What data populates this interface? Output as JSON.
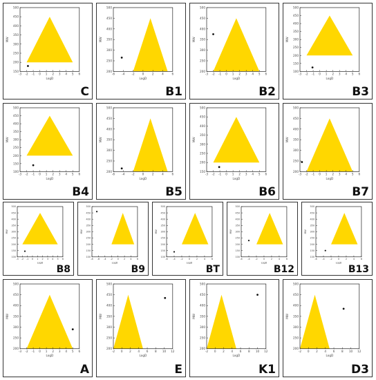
{
  "colors": {
    "triangle": "#FFD700",
    "point": "#111111",
    "axis": "#222222",
    "tick_text": "#444444"
  },
  "common_axis_labels": {
    "xlabel": "LogD",
    "ylabel": "MW"
  },
  "chart_data": [
    {
      "id": "C",
      "type": "scatter",
      "xlim": [
        -3,
        6
      ],
      "xticks": [
        -3,
        -2,
        -1,
        0,
        1,
        2,
        3,
        4,
        5,
        6
      ],
      "ylim": [
        150,
        500
      ],
      "yticks": [
        150,
        200,
        250,
        300,
        350,
        400,
        450,
        500
      ],
      "triangle": [
        [
          -2,
          200
        ],
        [
          1.5,
          450
        ],
        [
          5,
          200
        ]
      ],
      "points": [
        [
          -1.8,
          180
        ]
      ]
    },
    {
      "id": "B1",
      "type": "scatter",
      "xlim": [
        -6,
        6
      ],
      "xticks": [
        -6,
        -4,
        -2,
        0,
        2,
        4,
        6
      ],
      "ylim": [
        200,
        500
      ],
      "yticks": [
        200,
        250,
        300,
        350,
        400,
        450,
        500
      ],
      "triangle": [
        [
          -2,
          200
        ],
        [
          1.5,
          450
        ],
        [
          5,
          200
        ]
      ],
      "points": [
        [
          -4.3,
          265
        ]
      ]
    },
    {
      "id": "B2",
      "type": "scatter",
      "xlim": [
        -3,
        6
      ],
      "xticks": [
        -3,
        -2,
        -1,
        0,
        1,
        2,
        3,
        4,
        5,
        6
      ],
      "ylim": [
        200,
        500
      ],
      "yticks": [
        200,
        250,
        300,
        350,
        400,
        450,
        500
      ],
      "triangle": [
        [
          -2,
          200
        ],
        [
          1.5,
          450
        ],
        [
          5,
          200
        ]
      ],
      "points": [
        [
          -2.0,
          375
        ]
      ]
    },
    {
      "id": "B3",
      "type": "scatter",
      "xlim": [
        -3,
        6
      ],
      "xticks": [
        -3,
        -2,
        -1,
        0,
        1,
        2,
        3,
        4,
        5,
        6
      ],
      "ylim": [
        100,
        500
      ],
      "yticks": [
        100,
        150,
        200,
        250,
        300,
        350,
        400,
        450,
        500
      ],
      "triangle": [
        [
          -2,
          200
        ],
        [
          1.5,
          450
        ],
        [
          5,
          200
        ]
      ],
      "points": [
        [
          -1.1,
          125
        ]
      ]
    },
    {
      "id": "B4",
      "type": "scatter",
      "xlim": [
        -3,
        6
      ],
      "xticks": [
        -3,
        -2,
        -1,
        0,
        1,
        2,
        3,
        4,
        5,
        6
      ],
      "ylim": [
        100,
        500
      ],
      "yticks": [
        100,
        150,
        200,
        250,
        300,
        350,
        400,
        450,
        500
      ],
      "triangle": [
        [
          -2,
          200
        ],
        [
          1.5,
          450
        ],
        [
          5,
          200
        ]
      ],
      "points": [
        [
          -1.0,
          140
        ]
      ]
    },
    {
      "id": "B5",
      "type": "scatter",
      "xlim": [
        -6,
        6
      ],
      "xticks": [
        -6,
        -4,
        -2,
        0,
        2,
        4,
        6
      ],
      "ylim": [
        200,
        500
      ],
      "yticks": [
        200,
        250,
        300,
        350,
        400,
        450,
        500
      ],
      "triangle": [
        [
          -2,
          200
        ],
        [
          1.5,
          450
        ],
        [
          5,
          200
        ]
      ],
      "points": [
        [
          -4.3,
          215
        ]
      ]
    },
    {
      "id": "B6",
      "type": "scatter",
      "xlim": [
        -3,
        6
      ],
      "xticks": [
        -3,
        -2,
        -1,
        0,
        1,
        2,
        3,
        4,
        5,
        6
      ],
      "ylim": [
        150,
        500
      ],
      "yticks": [
        150,
        200,
        250,
        300,
        350,
        400,
        450,
        500
      ],
      "triangle": [
        [
          -2,
          200
        ],
        [
          1.5,
          450
        ],
        [
          5,
          200
        ]
      ],
      "points": [
        [
          -1.1,
          175
        ]
      ]
    },
    {
      "id": "B7",
      "type": "scatter",
      "xlim": [
        -3,
        6
      ],
      "xticks": [
        -3,
        -2,
        -1,
        0,
        1,
        2,
        3,
        4,
        5,
        6
      ],
      "ylim": [
        200,
        500
      ],
      "yticks": [
        200,
        250,
        300,
        350,
        400,
        450,
        500
      ],
      "triangle": [
        [
          -2,
          200
        ],
        [
          1.5,
          450
        ],
        [
          5,
          200
        ]
      ],
      "points": [
        [
          -2.7,
          245
        ]
      ]
    },
    {
      "id": "B8",
      "type": "scatter",
      "xlim": [
        -3,
        6
      ],
      "xticks": [
        -3,
        -2,
        -1,
        0,
        1,
        2,
        3,
        4,
        5,
        6
      ],
      "ylim": [
        100,
        500
      ],
      "yticks": [
        100,
        150,
        200,
        250,
        300,
        350,
        400,
        450,
        500
      ],
      "triangle": [
        [
          -2,
          200
        ],
        [
          1.5,
          450
        ],
        [
          5,
          200
        ]
      ],
      "points": [
        [
          -1.5,
          145
        ]
      ]
    },
    {
      "id": "B9",
      "type": "scatter",
      "xlim": [
        -8,
        6
      ],
      "xticks": [
        -8,
        -6,
        -4,
        -2,
        0,
        2,
        4,
        6
      ],
      "ylim": [
        100,
        500
      ],
      "yticks": [
        100,
        150,
        200,
        250,
        300,
        350,
        400,
        450,
        500
      ],
      "triangle": [
        [
          -2,
          200
        ],
        [
          1.5,
          450
        ],
        [
          5,
          200
        ]
      ],
      "points": [
        [
          -6.5,
          460
        ]
      ]
    },
    {
      "id": "BT",
      "type": "scatter",
      "xlim": [
        -6,
        6
      ],
      "xticks": [
        -6,
        -4,
        -2,
        0,
        2,
        4,
        6
      ],
      "ylim": [
        100,
        500
      ],
      "yticks": [
        100,
        150,
        200,
        250,
        300,
        350,
        400,
        450,
        500
      ],
      "triangle": [
        [
          -2,
          200
        ],
        [
          1.5,
          450
        ],
        [
          5,
          200
        ]
      ],
      "points": [
        [
          -4.0,
          140
        ]
      ]
    },
    {
      "id": "B12",
      "type": "scatter",
      "xlim": [
        -6,
        6
      ],
      "xticks": [
        -6,
        -4,
        -2,
        0,
        2,
        4,
        6
      ],
      "ylim": [
        100,
        500
      ],
      "yticks": [
        100,
        150,
        200,
        250,
        300,
        350,
        400,
        450,
        500
      ],
      "triangle": [
        [
          -2,
          200
        ],
        [
          1.5,
          450
        ],
        [
          5,
          200
        ]
      ],
      "points": [
        [
          -4.0,
          230
        ]
      ]
    },
    {
      "id": "B13",
      "type": "scatter",
      "xlim": [
        -6,
        6
      ],
      "xticks": [
        -6,
        -4,
        -2,
        0,
        2,
        4,
        6
      ],
      "ylim": [
        100,
        500
      ],
      "yticks": [
        100,
        150,
        200,
        250,
        300,
        350,
        400,
        450,
        500
      ],
      "triangle": [
        [
          -2,
          200
        ],
        [
          1.5,
          450
        ],
        [
          5,
          200
        ]
      ],
      "points": [
        [
          -3.5,
          150
        ]
      ]
    },
    {
      "id": "A",
      "type": "scatter",
      "xlim": [
        -3,
        6
      ],
      "xticks": [
        -3,
        -2,
        -1,
        0,
        1,
        2,
        3,
        4,
        5,
        6
      ],
      "ylim": [
        200,
        500
      ],
      "yticks": [
        200,
        250,
        300,
        350,
        400,
        450,
        500
      ],
      "triangle": [
        [
          -2,
          200
        ],
        [
          1.5,
          450
        ],
        [
          5,
          200
        ]
      ],
      "points": [
        [
          5.0,
          290
        ]
      ]
    },
    {
      "id": "E",
      "type": "scatter",
      "xlim": [
        -2,
        12
      ],
      "xticks": [
        -2,
        0,
        2,
        4,
        6,
        8,
        10,
        12
      ],
      "ylim": [
        200,
        500
      ],
      "yticks": [
        200,
        250,
        300,
        350,
        400,
        450,
        500
      ],
      "triangle": [
        [
          -2,
          200
        ],
        [
          1.5,
          450
        ],
        [
          5,
          200
        ]
      ],
      "points": [
        [
          10.2,
          435
        ]
      ]
    },
    {
      "id": "K1",
      "type": "scatter",
      "xlim": [
        -2,
        12
      ],
      "xticks": [
        -2,
        0,
        2,
        4,
        6,
        8,
        10,
        12
      ],
      "ylim": [
        200,
        500
      ],
      "yticks": [
        200,
        250,
        300,
        350,
        400,
        450,
        500
      ],
      "triangle": [
        [
          -2,
          200
        ],
        [
          1.5,
          450
        ],
        [
          5,
          200
        ]
      ],
      "points": [
        [
          10.0,
          450
        ]
      ]
    },
    {
      "id": "D3",
      "type": "scatter",
      "xlim": [
        -2,
        12
      ],
      "xticks": [
        -2,
        0,
        2,
        4,
        6,
        8,
        10,
        12
      ],
      "ylim": [
        200,
        500
      ],
      "yticks": [
        200,
        250,
        300,
        350,
        400,
        450,
        500
      ],
      "triangle": [
        [
          -2,
          200
        ],
        [
          1.5,
          450
        ],
        [
          5,
          200
        ]
      ],
      "points": [
        [
          8.3,
          385
        ]
      ]
    }
  ]
}
